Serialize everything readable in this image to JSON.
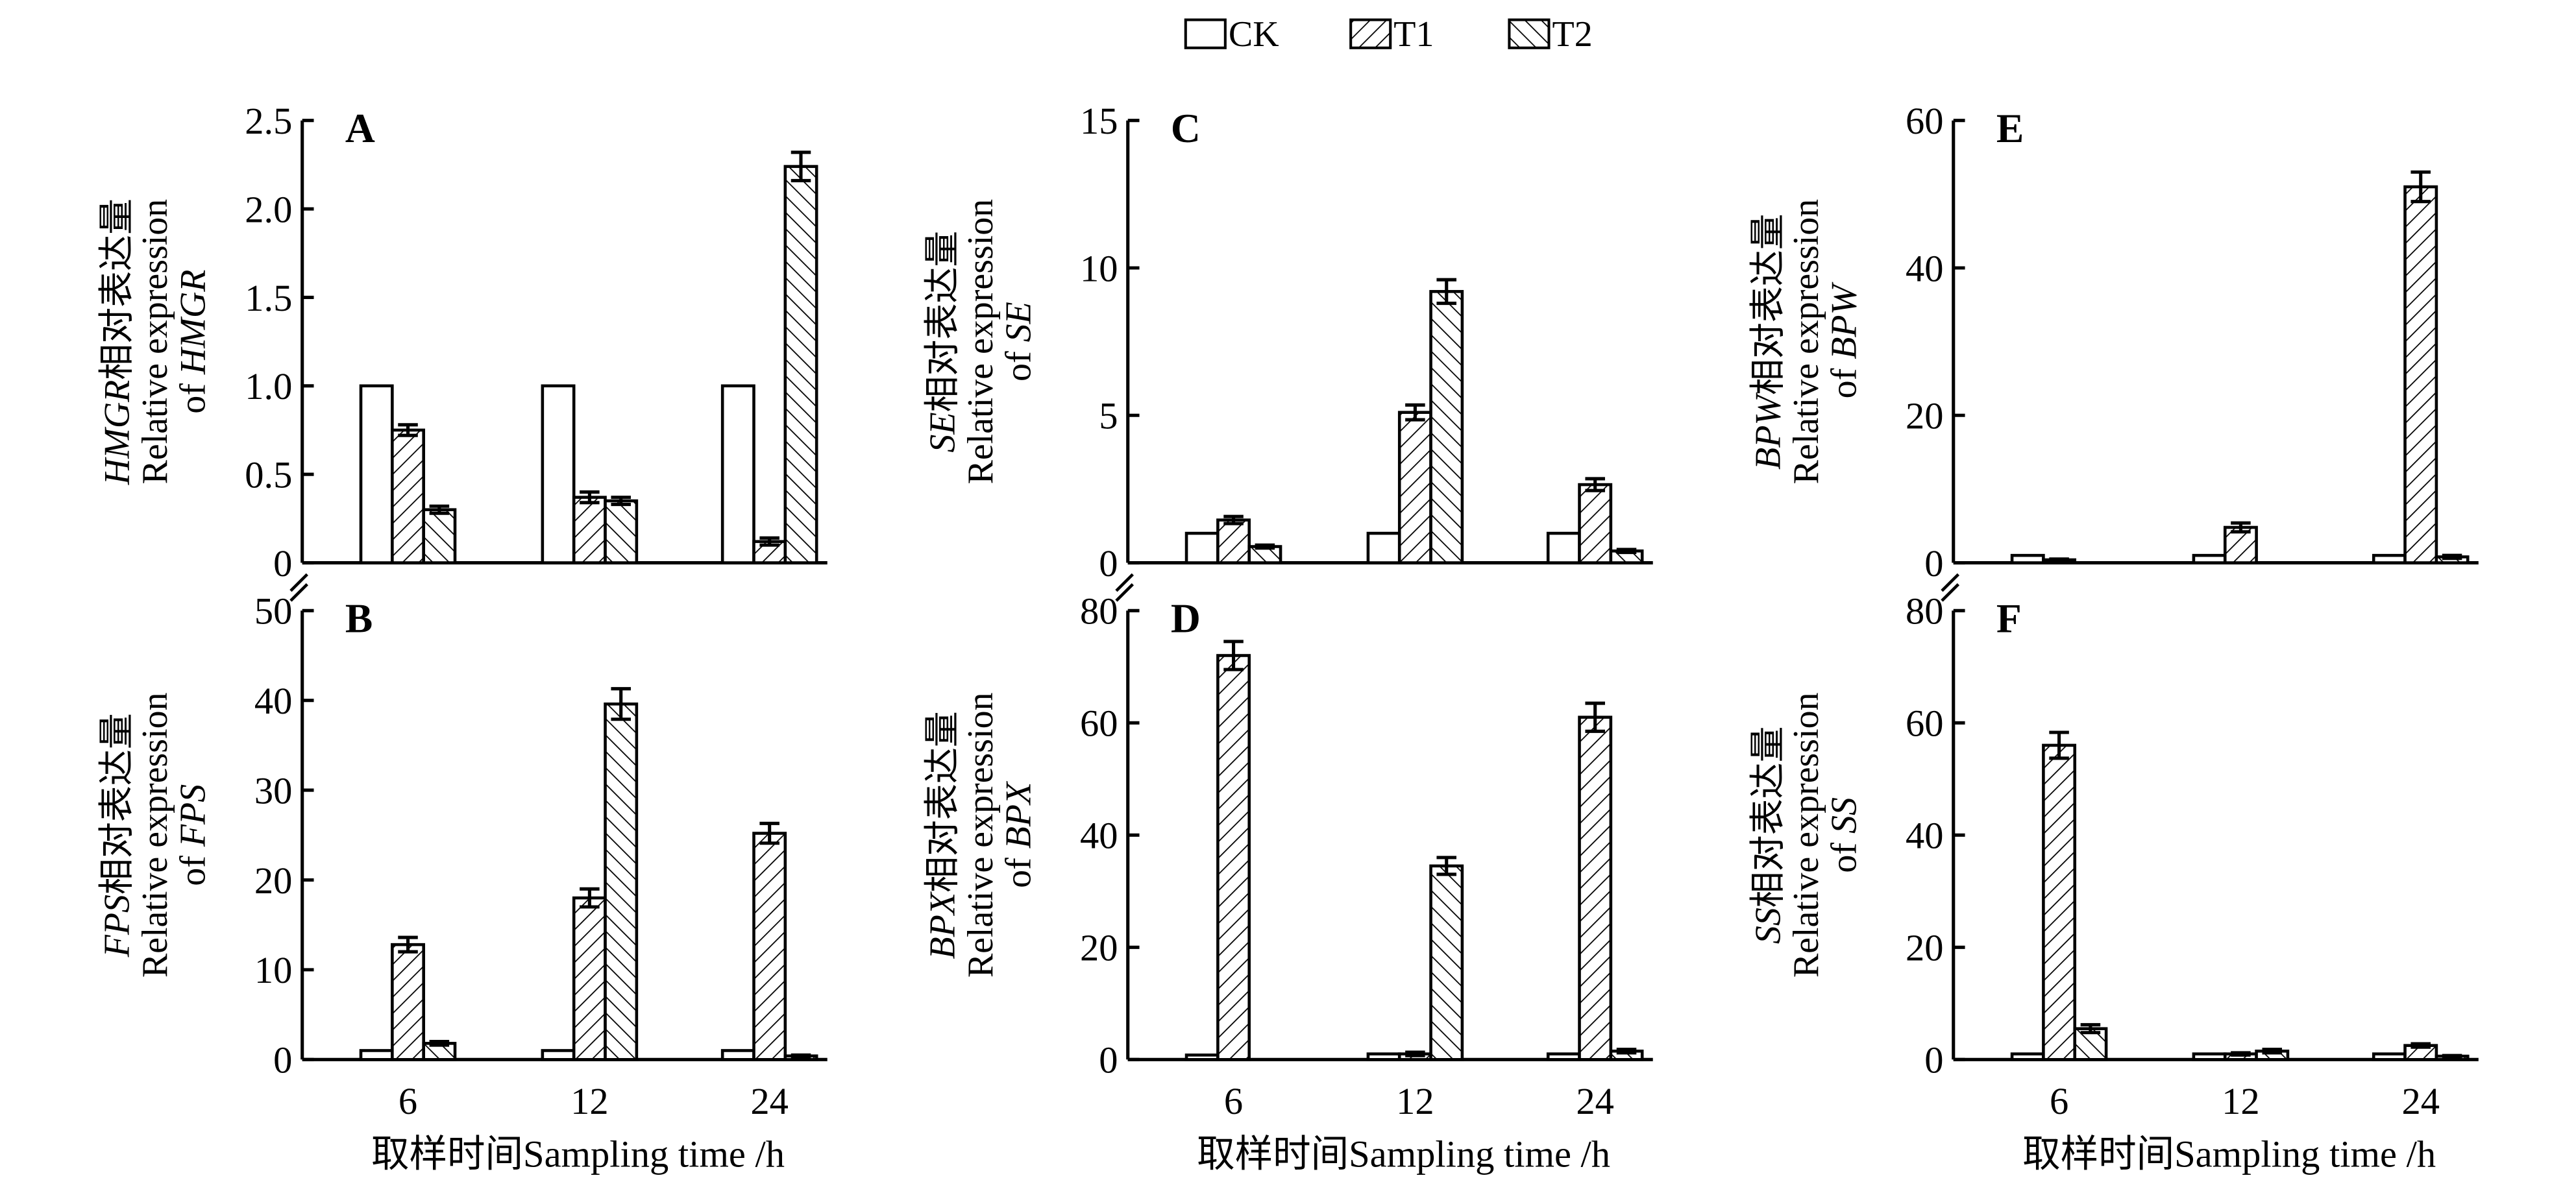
{
  "legend": [
    {
      "name": "CK",
      "pattern": "none"
    },
    {
      "name": "T1",
      "pattern": "forward-hatch"
    },
    {
      "name": "T2",
      "pattern": "back-hatch"
    }
  ],
  "xlabel": "取样时间Sampling time /h",
  "chart_data": [
    {
      "type": "bar",
      "panel": "A",
      "gene": "HMGR",
      "ylabel_cn": "相对表达量",
      "ylabel_en": "Relative expression",
      "ylabel_of": "of ",
      "ylim": [
        0,
        2.5
      ],
      "yticks": [
        "0",
        "0.5",
        "1.0",
        "1.5",
        "2.0",
        "2.5"
      ],
      "ytick_values": [
        0,
        0.5,
        1,
        1.5,
        2,
        2.5
      ],
      "categories": [
        "6",
        "12",
        "24"
      ],
      "show_x": false,
      "series": [
        {
          "name": "CK",
          "values": [
            1,
            1,
            1
          ],
          "err": [
            0,
            0,
            0
          ]
        },
        {
          "name": "T1",
          "values": [
            0.75,
            0.37,
            0.12
          ],
          "err": [
            0.03,
            0.03,
            0.02
          ]
        },
        {
          "name": "T2",
          "values": [
            0.3,
            0.35,
            2.24
          ],
          "err": [
            0.02,
            0.02,
            0.08
          ]
        }
      ]
    },
    {
      "type": "bar",
      "panel": "B",
      "gene": "FPS",
      "ylabel_cn": "相对表达量",
      "ylabel_en": "Relative expression",
      "ylabel_of": "of ",
      "ylim": [
        0,
        50
      ],
      "yticks": [
        "0",
        "10",
        "20",
        "30",
        "40",
        "50"
      ],
      "ytick_values": [
        0,
        10,
        20,
        30,
        40,
        50
      ],
      "categories": [
        "6",
        "12",
        "24"
      ],
      "show_x": true,
      "series": [
        {
          "name": "CK",
          "values": [
            1,
            1,
            1
          ],
          "err": [
            0,
            0,
            0
          ]
        },
        {
          "name": "T1",
          "values": [
            12.8,
            18,
            25.2
          ],
          "err": [
            0.8,
            1,
            1.1
          ]
        },
        {
          "name": "T2",
          "values": [
            1.8,
            39.6,
            0.4
          ],
          "err": [
            0.2,
            1.7,
            0.1
          ]
        }
      ]
    },
    {
      "type": "bar",
      "panel": "C",
      "gene": "SE",
      "ylabel_cn": "相对表达量",
      "ylabel_en": "Relative expression",
      "ylabel_of": "of ",
      "ylim": [
        0,
        15
      ],
      "yticks": [
        "0",
        "5",
        "10",
        "15"
      ],
      "ytick_values": [
        0,
        5,
        10,
        15
      ],
      "categories": [
        "6",
        "12",
        "24"
      ],
      "show_x": false,
      "series": [
        {
          "name": "CK",
          "values": [
            1,
            1,
            1
          ],
          "err": [
            0,
            0,
            0
          ]
        },
        {
          "name": "T1",
          "values": [
            1.45,
            5.1,
            2.65
          ],
          "err": [
            0.12,
            0.25,
            0.2
          ]
        },
        {
          "name": "T2",
          "values": [
            0.55,
            9.2,
            0.4
          ],
          "err": [
            0.05,
            0.4,
            0.05
          ]
        }
      ]
    },
    {
      "type": "bar",
      "panel": "D",
      "gene": "BPX",
      "ylabel_cn": "相对表达量",
      "ylabel_en": "Relative expression",
      "ylabel_of": "of ",
      "ylim": [
        0,
        80
      ],
      "yticks": [
        "0",
        "20",
        "40",
        "60",
        "80"
      ],
      "ytick_values": [
        0,
        20,
        40,
        60,
        80
      ],
      "categories": [
        "6",
        "12",
        "24"
      ],
      "show_x": true,
      "series": [
        {
          "name": "CK",
          "values": [
            0.8,
            1,
            1
          ],
          "err": [
            0,
            0,
            0
          ]
        },
        {
          "name": "T1",
          "values": [
            72,
            1,
            61
          ],
          "err": [
            2.5,
            0.3,
            2.5
          ]
        },
        {
          "name": "T2",
          "values": [
            0,
            34.5,
            1.5
          ],
          "err": [
            0,
            1.5,
            0.3
          ]
        }
      ]
    },
    {
      "type": "bar",
      "panel": "E",
      "gene": "BPW",
      "ylabel_cn": "相对表达量",
      "ylabel_en": "Relative expression",
      "ylabel_of": "of ",
      "ylim": [
        0,
        60
      ],
      "yticks": [
        "0",
        "20",
        "40",
        "60"
      ],
      "ytick_values": [
        0,
        20,
        40,
        60
      ],
      "categories": [
        "6",
        "12",
        "24"
      ],
      "show_x": false,
      "series": [
        {
          "name": "CK",
          "values": [
            1,
            1,
            1
          ],
          "err": [
            0,
            0,
            0
          ]
        },
        {
          "name": "T1",
          "values": [
            0.4,
            4.8,
            51
          ],
          "err": [
            0.1,
            0.6,
            2
          ]
        },
        {
          "name": "T2",
          "values": [
            0,
            0,
            0.8
          ],
          "err": [
            0,
            0,
            0.2
          ]
        }
      ]
    },
    {
      "type": "bar",
      "panel": "F",
      "gene": "SS",
      "ylabel_cn": "相对表达量",
      "ylabel_en": "Relative expression",
      "ylabel_of": "of ",
      "ylim": [
        0,
        80
      ],
      "yticks": [
        "0",
        "20",
        "40",
        "60",
        "80"
      ],
      "ytick_values": [
        0,
        20,
        40,
        60,
        80
      ],
      "categories": [
        "6",
        "12",
        "24"
      ],
      "show_x": true,
      "series": [
        {
          "name": "CK",
          "values": [
            1,
            1,
            1
          ],
          "err": [
            0,
            0,
            0
          ]
        },
        {
          "name": "T1",
          "values": [
            56,
            1,
            2.5
          ],
          "err": [
            2.3,
            0.2,
            0.3
          ]
        },
        {
          "name": "T2",
          "values": [
            5.5,
            1.5,
            0.6
          ],
          "err": [
            0.7,
            0.3,
            0.1
          ]
        }
      ]
    }
  ]
}
